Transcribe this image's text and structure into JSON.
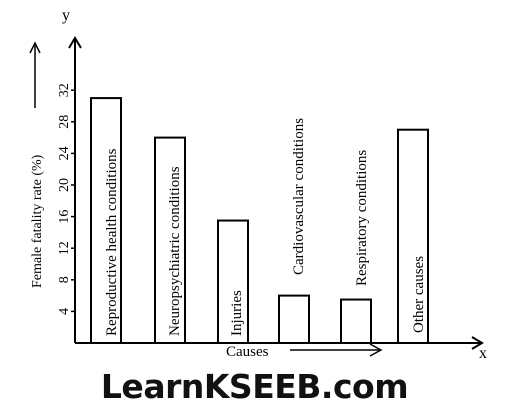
{
  "chart_data": {
    "type": "bar",
    "categories": [
      "Reproductive health conditions",
      "Neuropsychiatric conditions",
      "Injuries",
      "Cardiovascular conditions",
      "Respiratory conditions",
      "Other causes"
    ],
    "values": [
      31,
      26,
      15.5,
      6,
      5.5,
      27
    ],
    "ylabel": "Female fatality rate (%)",
    "xlabel": "Causes",
    "x_axis_letter": "x",
    "y_axis_letter": "y",
    "yticks": [
      4,
      8,
      12,
      16,
      20,
      24,
      28,
      32
    ],
    "ylim": [
      0,
      34
    ],
    "grid": false,
    "bar_fill": "#ffffff",
    "stroke_color": "#000000"
  },
  "watermark": "LearnKSEEB.com"
}
